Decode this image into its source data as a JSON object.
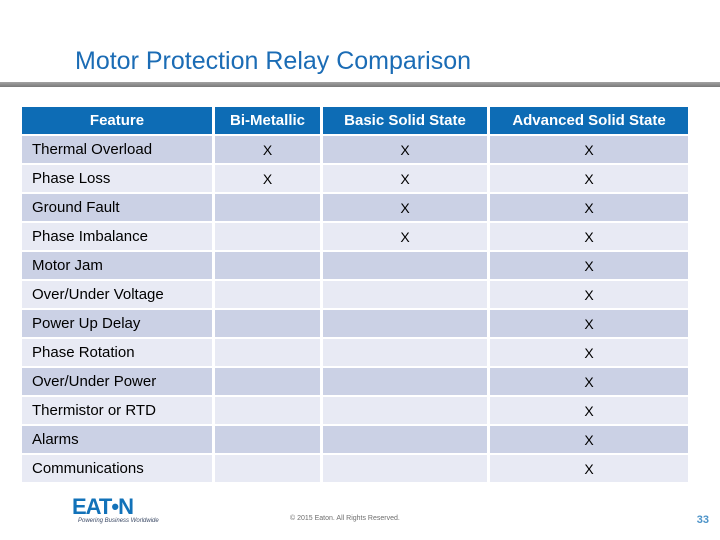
{
  "slide": {
    "title": "Motor Protection Relay Comparison",
    "copyright": "© 2015 Eaton. All Rights Reserved.",
    "page_number": "33"
  },
  "logo": {
    "wordmark": "EAT•N",
    "tagline": "Powering Business Worldwide"
  },
  "table": {
    "headers": [
      "Feature",
      "Bi-Metallic",
      "Basic Solid State",
      "Advanced Solid State"
    ],
    "rows": [
      [
        "Thermal Overload",
        "X",
        "X",
        "X"
      ],
      [
        "Phase Loss",
        "X",
        "X",
        "X"
      ],
      [
        "Ground Fault",
        "",
        "X",
        "X"
      ],
      [
        "Phase Imbalance",
        "",
        "X",
        "X"
      ],
      [
        "Motor Jam",
        "",
        "",
        "X"
      ],
      [
        "Over/Under Voltage",
        "",
        "",
        "X"
      ],
      [
        "Power Up Delay",
        "",
        "",
        "X"
      ],
      [
        "Phase Rotation",
        "",
        "",
        "X"
      ],
      [
        "Over/Under Power",
        "",
        "",
        "X"
      ],
      [
        "Thermistor or RTD",
        "",
        "",
        "X"
      ],
      [
        "Alarms",
        "",
        "",
        "X"
      ],
      [
        "Communications",
        "",
        "",
        "X"
      ]
    ]
  },
  "colors": {
    "title_blue": "#1B6CB5",
    "header_blue": "#0D6CB5",
    "row_dark": "#CBD1E5",
    "row_light": "#E8EAF4",
    "rule_gray": "#7F7F7F",
    "logo_blue": "#1272B9",
    "page_number_blue": "#4C93C8"
  }
}
